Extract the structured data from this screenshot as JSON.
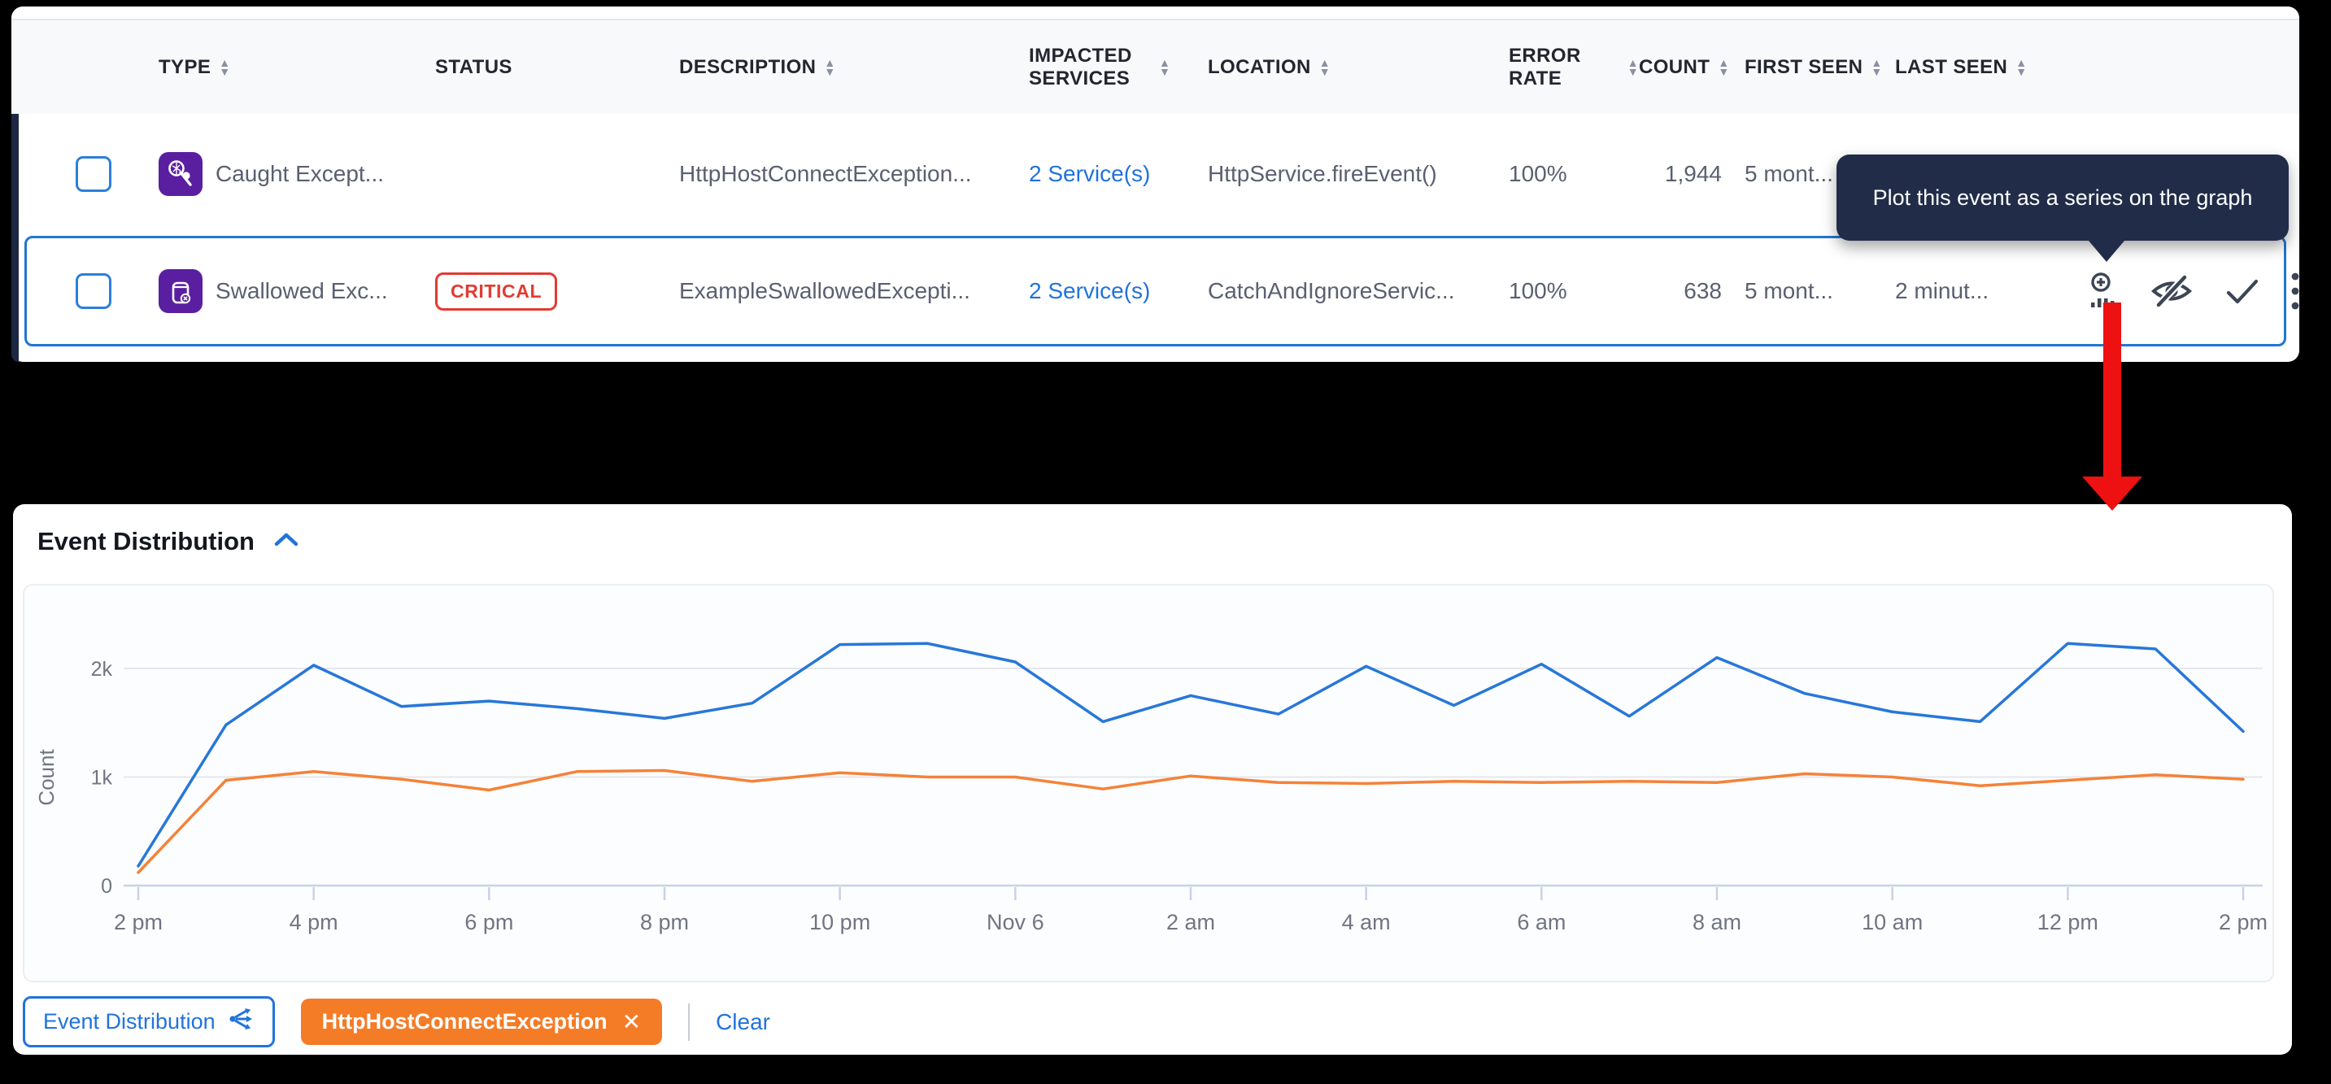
{
  "table": {
    "columns": [
      {
        "label": "TYPE",
        "sortable": true
      },
      {
        "label": "STATUS",
        "sortable": false
      },
      {
        "label": "DESCRIPTION",
        "sortable": true
      },
      {
        "label": "IMPACTED SERVICES",
        "sortable": true
      },
      {
        "label": "LOCATION",
        "sortable": true
      },
      {
        "label": "ERROR RATE",
        "sortable": true
      },
      {
        "label": "COUNT",
        "sortable": true
      },
      {
        "label": "FIRST SEEN",
        "sortable": true
      },
      {
        "label": "LAST SEEN",
        "sortable": true
      }
    ],
    "rows": [
      {
        "type": "Caught Except...",
        "status": "",
        "description": "HttpHostConnectException...",
        "impacted_services": "2 Service(s)",
        "location": "HttpService.fireEvent()",
        "error_rate": "100%",
        "count": "1,944",
        "first_seen": "5 mont...",
        "last_seen": ""
      },
      {
        "type": "Swallowed Exc...",
        "status": "CRITICAL",
        "description": "ExampleSwallowedExcepti...",
        "impacted_services": "2 Service(s)",
        "location": "CatchAndIgnoreServic...",
        "error_rate": "100%",
        "count": "638",
        "first_seen": "5 mont...",
        "last_seen": "2 minut..."
      }
    ]
  },
  "tooltip": {
    "text": "Plot this event as a series on the graph"
  },
  "chart_section": {
    "title": "Event Distribution"
  },
  "chart_data": {
    "type": "line",
    "title": "Event Distribution",
    "ylabel": "Count",
    "grid": "horizontal",
    "ylim": [
      0,
      2300
    ],
    "yticks": [
      {
        "value": 0,
        "label": "0"
      },
      {
        "value": 1000,
        "label": "1k"
      },
      {
        "value": 2000,
        "label": "2k"
      }
    ],
    "x_tick_labels": [
      "2 pm",
      "4 pm",
      "6 pm",
      "8 pm",
      "10 pm",
      "Nov 6",
      "2 am",
      "4 am",
      "6 am",
      "8 am",
      "10 am",
      "12 pm",
      "2 pm"
    ],
    "x_tick_indices": [
      0,
      2,
      4,
      6,
      8,
      10,
      12,
      14,
      16,
      18,
      20,
      22,
      24
    ],
    "series": [
      {
        "name": "Event Distribution",
        "color": "#2777d9",
        "values": [
          180,
          1480,
          2030,
          1650,
          1700,
          1630,
          1540,
          1680,
          2220,
          2230,
          2060,
          1510,
          1750,
          1580,
          2020,
          1660,
          2040,
          1560,
          2100,
          1770,
          1600,
          1510,
          2230,
          2180,
          1420
        ]
      },
      {
        "name": "HttpHostConnectException",
        "color": "#f58238",
        "values": [
          120,
          970,
          1050,
          980,
          880,
          1050,
          1060,
          960,
          1040,
          1000,
          1000,
          890,
          1010,
          950,
          940,
          960,
          950,
          960,
          950,
          1030,
          1000,
          920,
          970,
          1020,
          980
        ]
      }
    ],
    "legend_position": "bottom-chips"
  },
  "legend": {
    "series_chip": "Event Distribution",
    "filter_chip": "HttpHostConnectException",
    "remove_icon": "✕",
    "clear_label": "Clear"
  },
  "icons": {
    "sort_up": "▲",
    "sort_down": "▼"
  },
  "colors": {
    "series_blue": "#2777d9",
    "series_orange": "#f58238",
    "link_blue": "#2172dd",
    "critical_red": "#e23b32",
    "tooltip_navy": "#212c49",
    "type_purple": "#5a1fa0",
    "arrow_red": "#ee1111"
  }
}
